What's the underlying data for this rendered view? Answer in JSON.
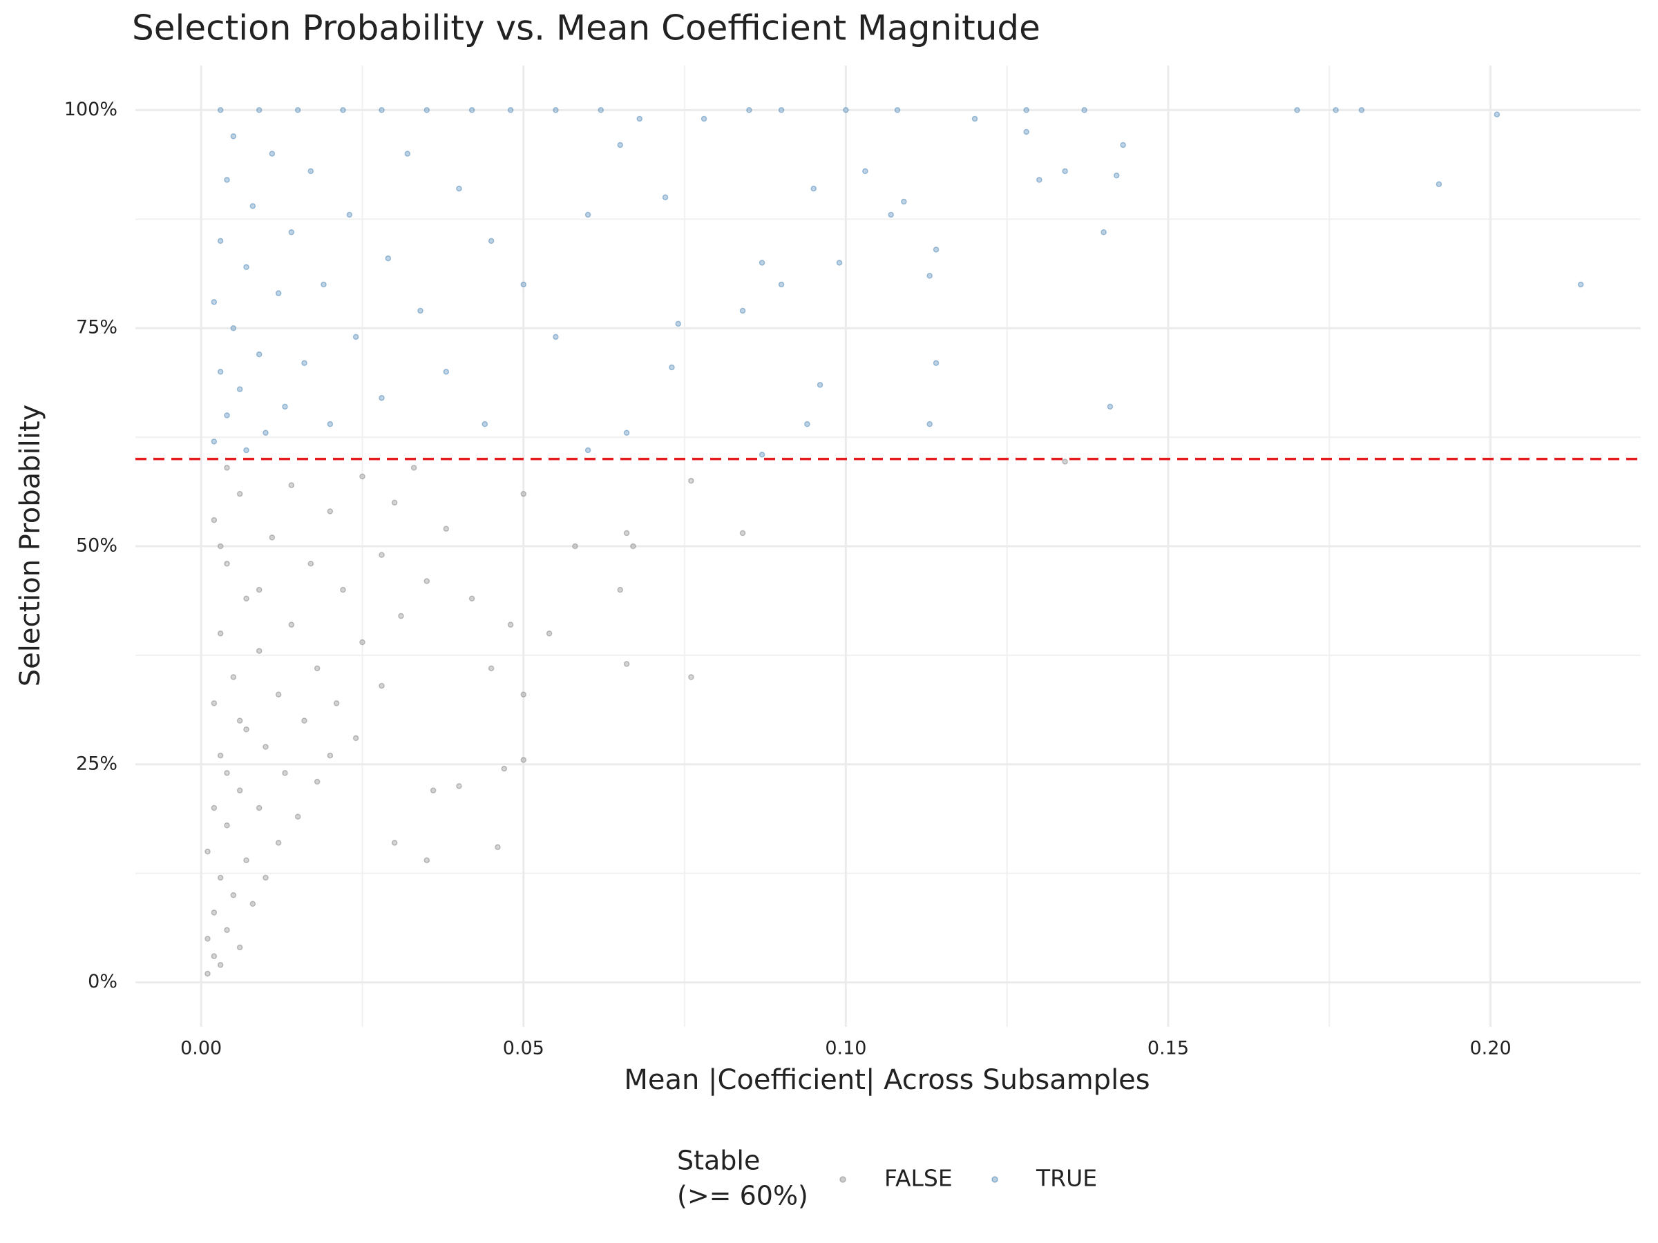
{
  "chart_data": {
    "type": "scatter",
    "title": "Selection Probability vs. Mean Coefficient Magnitude",
    "xlabel": "Mean |Coefficient| Across Subsamples",
    "ylabel": "Selection Probability",
    "legend_title": [
      "Stable",
      "(>= 60%)"
    ],
    "xlim": [
      -0.0102,
      0.2233
    ],
    "ylim": [
      -5.1,
      105.1
    ],
    "xticks": [
      {
        "value": 0,
        "label": "0.00"
      },
      {
        "value": 0.05,
        "label": "0.05"
      },
      {
        "value": 0.1,
        "label": "0.10"
      },
      {
        "value": 0.15,
        "label": "0.15"
      },
      {
        "value": 0.2,
        "label": "0.20"
      }
    ],
    "yticks": [
      {
        "value": 0,
        "label": "0%"
      },
      {
        "value": 25,
        "label": "25%"
      },
      {
        "value": 50,
        "label": "50%"
      },
      {
        "value": 75,
        "label": "75%"
      },
      {
        "value": 100,
        "label": "100%"
      }
    ],
    "grid": true,
    "hline": {
      "value": 60,
      "color": "#e41a1c"
    },
    "legend": "bottom",
    "series": [
      {
        "name": "FALSE",
        "color": "#808080",
        "x": [
          0.001,
          0.002,
          0.001,
          0.003,
          0.004,
          0.002,
          0.006,
          0.005,
          0.003,
          0.008,
          0.001,
          0.007,
          0.01,
          0.004,
          0.012,
          0.002,
          0.009,
          0.015,
          0.006,
          0.013,
          0.018,
          0.003,
          0.01,
          0.02,
          0.007,
          0.016,
          0.024,
          0.002,
          0.012,
          0.021,
          0.005,
          0.018,
          0.028,
          0.009,
          0.025,
          0.003,
          0.014,
          0.031,
          0.007,
          0.022,
          0.035,
          0.004,
          0.017,
          0.028,
          0.011,
          0.038,
          0.002,
          0.02,
          0.03,
          0.006,
          0.014,
          0.025,
          0.004,
          0.033,
          0.009,
          0.006,
          0.004,
          0.003,
          0.042,
          0.036,
          0.03,
          0.045,
          0.084,
          0.066,
          0.067,
          0.058,
          0.076,
          0.066,
          0.065,
          0.054,
          0.046,
          0.05,
          0.05,
          0.047,
          0.134,
          0.076,
          0.05,
          0.04,
          0.035,
          0.048
        ],
        "values": [
          1,
          3,
          5,
          2,
          6,
          8,
          4,
          10,
          12,
          9,
          15,
          14,
          12,
          18,
          16,
          20,
          20,
          19,
          22,
          24,
          23,
          26,
          27,
          26,
          29,
          30,
          28,
          32,
          33,
          32,
          35,
          36,
          34,
          38,
          39,
          40,
          41,
          42,
          44,
          45,
          46,
          48,
          48,
          49,
          51,
          52,
          53,
          54,
          55,
          56,
          57,
          58,
          59,
          59,
          45,
          30,
          24,
          50,
          44,
          22,
          16,
          36,
          51.5,
          51.5,
          50,
          50,
          35,
          36.5,
          45,
          40,
          15.5,
          25.5,
          33,
          24.5,
          59.7,
          57.5,
          56,
          22.5,
          14,
          41
        ]
      },
      {
        "name": "TRUE",
        "color": "#4682b4",
        "x": [
          0.002,
          0.004,
          0.007,
          0.003,
          0.006,
          0.01,
          0.002,
          0.005,
          0.009,
          0.013,
          0.003,
          0.007,
          0.012,
          0.016,
          0.02,
          0.004,
          0.008,
          0.014,
          0.019,
          0.024,
          0.028,
          0.005,
          0.011,
          0.017,
          0.023,
          0.029,
          0.034,
          0.038,
          0.003,
          0.009,
          0.015,
          0.022,
          0.028,
          0.035,
          0.042,
          0.048,
          0.055,
          0.062,
          0.068,
          0.032,
          0.04,
          0.045,
          0.05,
          0.055,
          0.044,
          0.06,
          0.065,
          0.072,
          0.078,
          0.085,
          0.09,
          0.1,
          0.108,
          0.12,
          0.13,
          0.134,
          0.142,
          0.143,
          0.14,
          0.141,
          0.113,
          0.114,
          0.113,
          0.114,
          0.107,
          0.109,
          0.099,
          0.095,
          0.087,
          0.084,
          0.094,
          0.09,
          0.087,
          0.096,
          0.074,
          0.073,
          0.066,
          0.06,
          0.128,
          0.137,
          0.17,
          0.176,
          0.18,
          0.201,
          0.192,
          0.214,
          0.128,
          0.103
        ],
        "values": [
          62,
          65,
          61,
          70,
          68,
          63,
          78,
          75,
          72,
          66,
          85,
          82,
          79,
          71,
          64,
          92,
          89,
          86,
          80,
          74,
          67,
          97,
          95,
          93,
          88,
          83,
          77,
          70,
          100,
          100,
          100,
          100,
          100,
          100,
          100,
          100,
          100,
          100,
          99,
          95,
          91,
          85,
          80,
          74,
          64,
          88,
          96,
          90,
          99,
          100,
          100,
          100,
          100,
          99,
          92,
          93,
          92.5,
          96,
          86,
          66,
          64,
          71,
          81,
          84,
          88,
          89.5,
          82.5,
          91,
          82.5,
          77,
          64,
          80,
          60.5,
          68.5,
          75.5,
          70.5,
          63,
          61,
          100,
          100,
          100,
          100,
          100,
          99.5,
          91.5,
          80,
          97.5,
          93
        ]
      }
    ]
  }
}
